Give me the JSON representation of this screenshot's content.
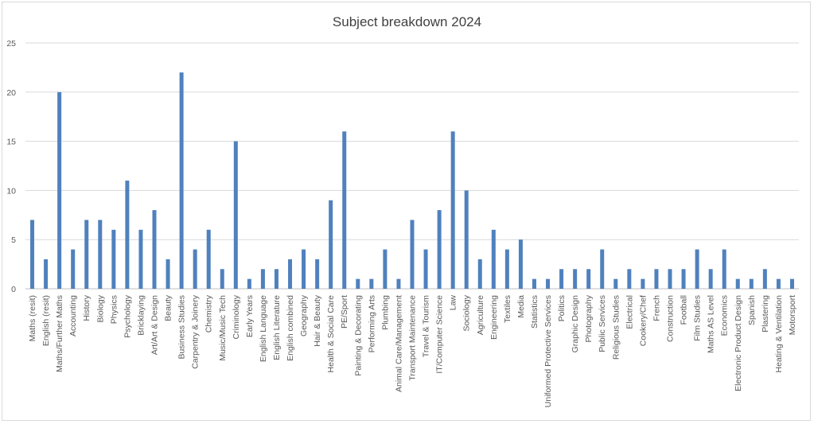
{
  "chart_data": {
    "type": "bar",
    "title": "Subject breakdown 2024",
    "xlabel": "",
    "ylabel": "",
    "ylim": [
      0,
      25
    ],
    "yticks": [
      0,
      5,
      10,
      15,
      20,
      25
    ],
    "grid": true,
    "legend": "none",
    "bar_color": "#4f81bd",
    "grid_color": "#d9d9d9",
    "categories": [
      "Maths (resit)",
      "English (resit)",
      "Maths/Further Maths",
      "Accounting",
      "History",
      "Biology",
      "Physics",
      "Psychology",
      "Bricklaying",
      "Art/Art & Design",
      "Beauty",
      "Business Studies",
      "Carpentry & Joinery",
      "Chemistry",
      "Music/Music Tech",
      "Criminology",
      "Early Years",
      "English Language",
      "English Literature",
      "English combined",
      "Geography",
      "Hair & Beauty",
      "Health & Social Care",
      "PE/Sport",
      "Painting & Decorating",
      "Performing Arts",
      "Plumbing",
      "Animal Care/Management",
      "Transport Maintenance",
      "Travel & Tourism",
      "IT/Computer Science",
      "Law",
      "Sociology",
      "Agriculture",
      "Engineering",
      "Textiles",
      "Media",
      "Statistics",
      "Uniformed Protective Services",
      "Politics",
      "Graphic Design",
      "Photography",
      "Public Services",
      "Religious Studies",
      "Electrical",
      "Cookery/Chef",
      "French",
      "Construction",
      "Football",
      "Film Studies",
      "Maths AS Level",
      "Economics",
      "Electronic Product Design",
      "Spanish",
      "Plastering",
      "Heating & Ventilation",
      "Motorsport"
    ],
    "values": [
      7,
      3,
      20,
      4,
      7,
      7,
      6,
      11,
      6,
      8,
      3,
      22,
      4,
      6,
      2,
      15,
      1,
      2,
      2,
      3,
      4,
      3,
      9,
      16,
      1,
      1,
      4,
      1,
      7,
      4,
      8,
      16,
      10,
      3,
      6,
      4,
      5,
      1,
      1,
      2,
      2,
      2,
      4,
      1,
      2,
      1,
      2,
      2,
      2,
      4,
      2,
      4,
      1,
      1,
      2,
      1,
      1
    ]
  }
}
